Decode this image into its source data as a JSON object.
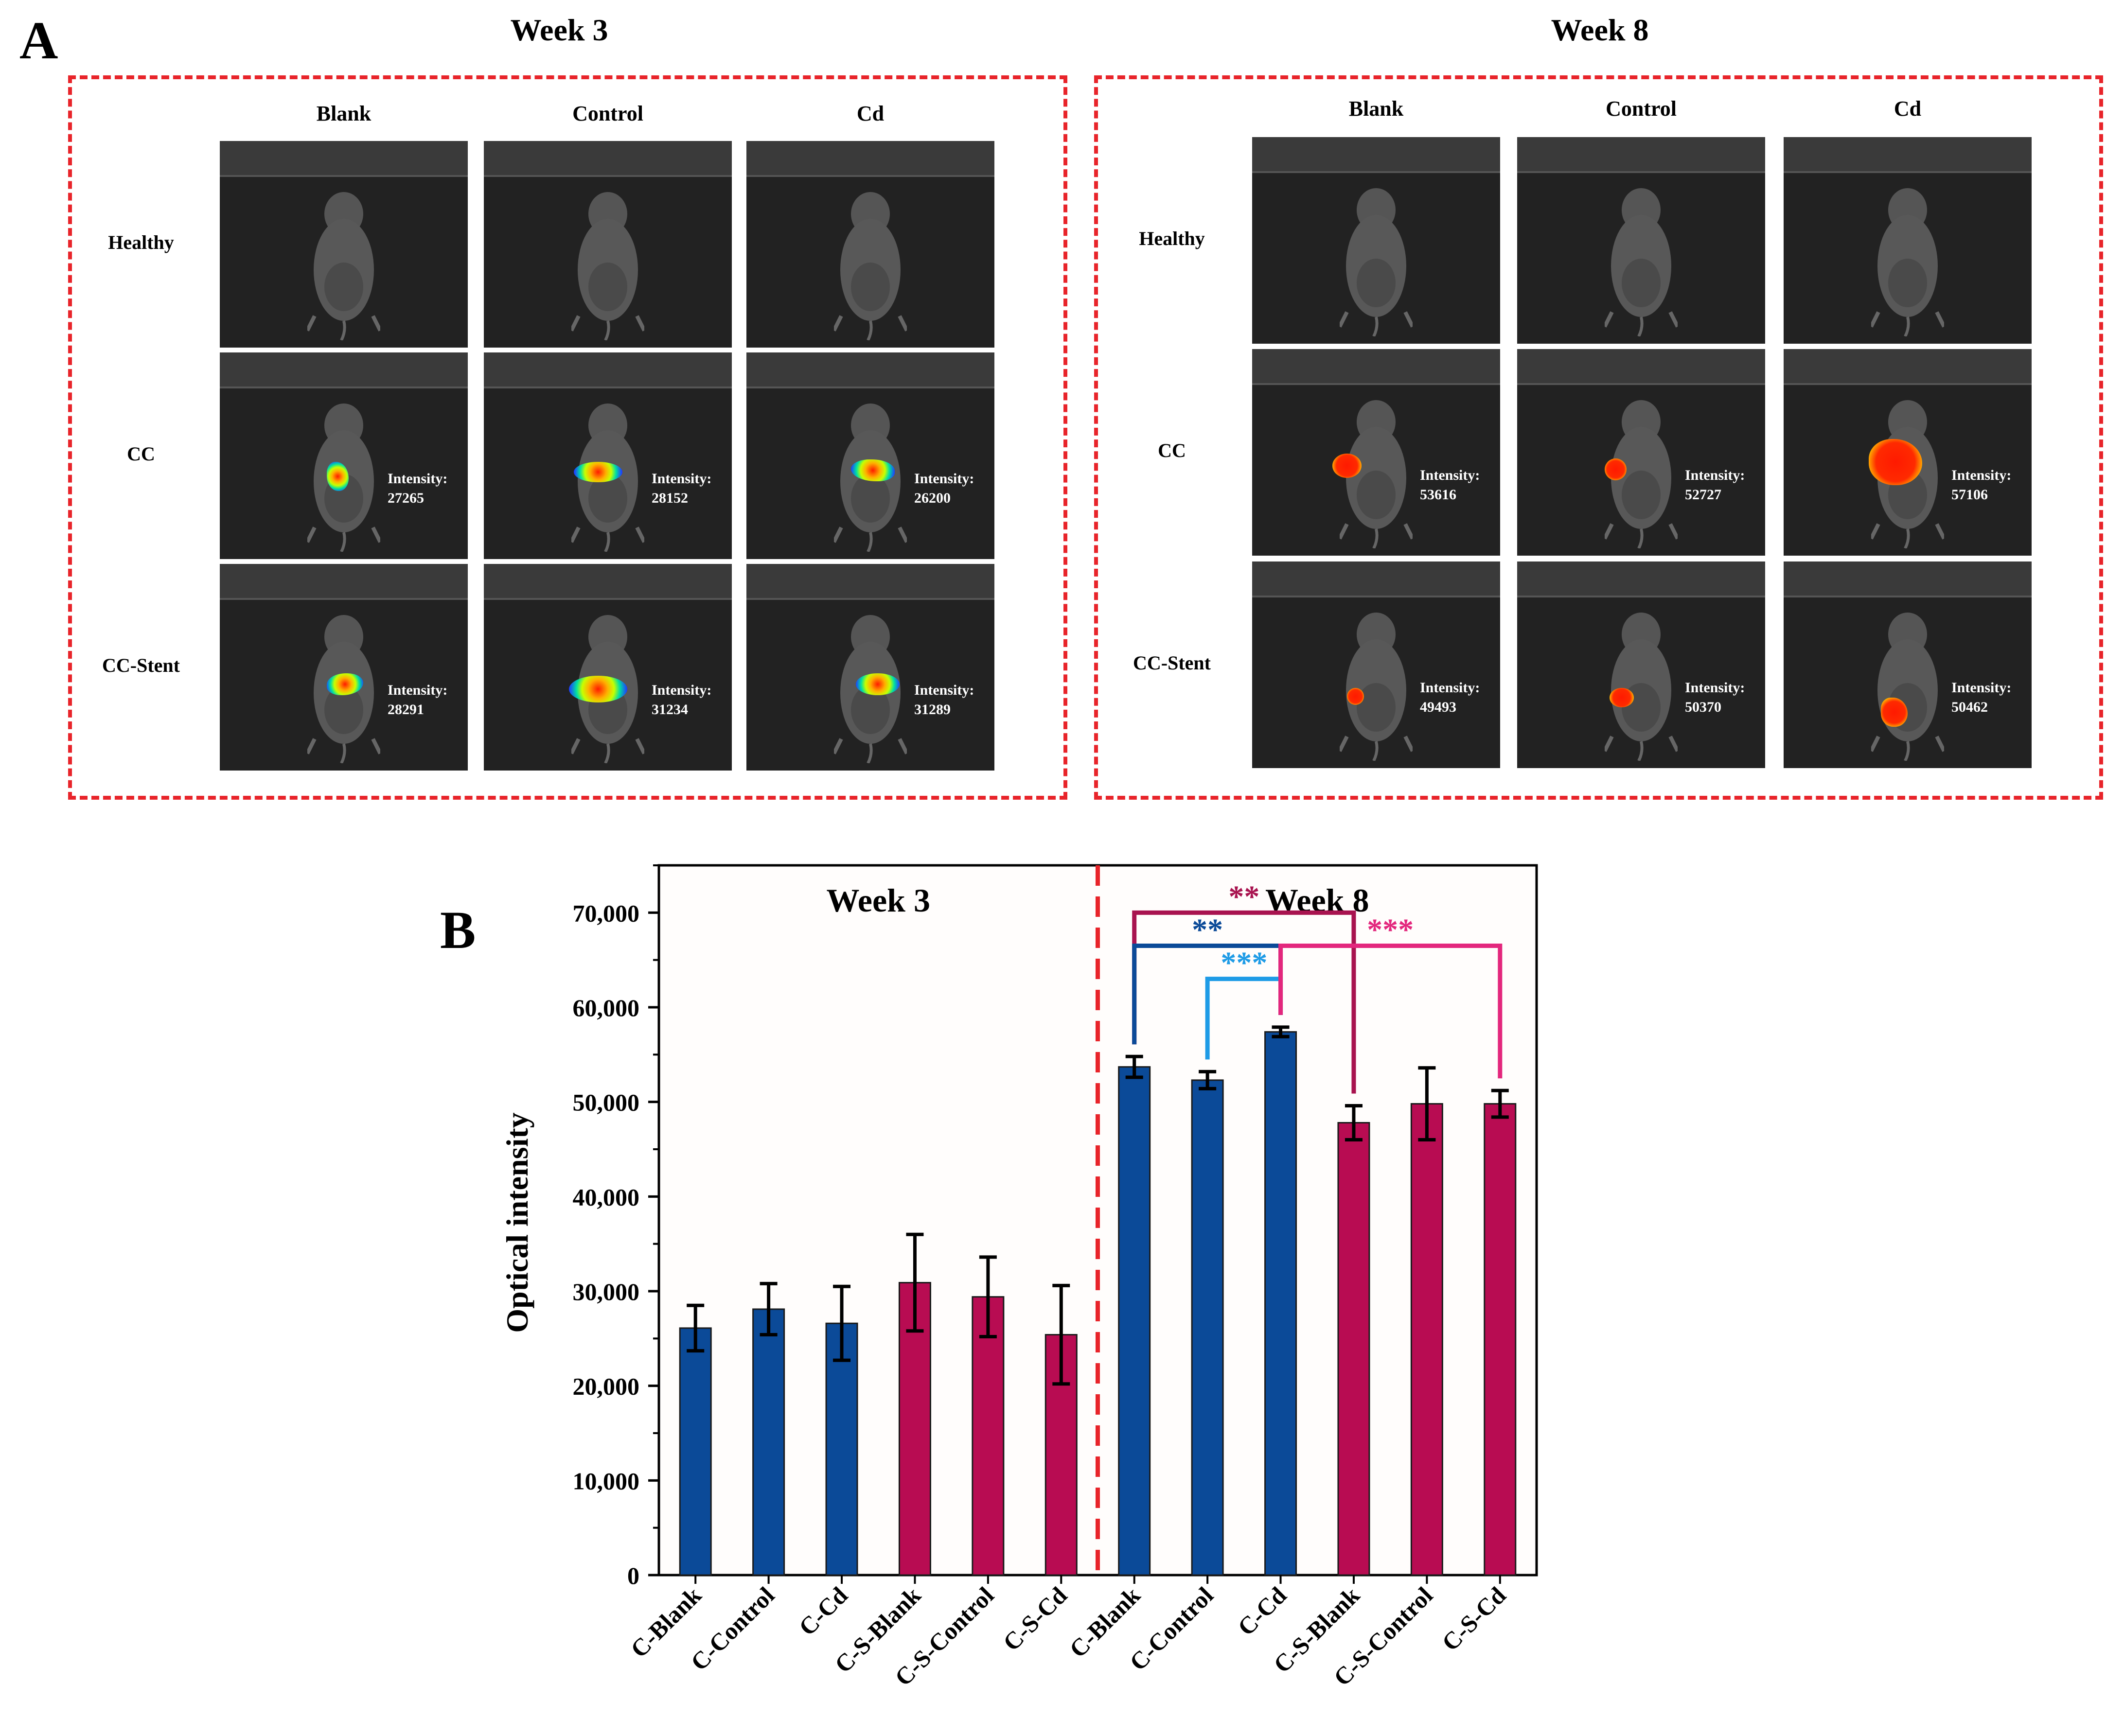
{
  "panel_a": {
    "letter": "A",
    "weeks": [
      {
        "title": "Week 3",
        "columns": [
          "Blank",
          "Control",
          "Cd"
        ],
        "rows": [
          {
            "label": "Healthy",
            "intensities": [
              null,
              null,
              null
            ]
          },
          {
            "label": "CC",
            "intensities": [
              "27265",
              "28152",
              "26200"
            ]
          },
          {
            "label": "CC-Stent",
            "intensities": [
              "28291",
              "31234",
              "31289"
            ]
          }
        ]
      },
      {
        "title": "Week 8",
        "columns": [
          "Blank",
          "Control",
          "Cd"
        ],
        "rows": [
          {
            "label": "Healthy",
            "intensities": [
              null,
              null,
              null
            ]
          },
          {
            "label": "CC",
            "intensities": [
              "53616",
              "52727",
              "57106"
            ]
          },
          {
            "label": "CC-Stent",
            "intensities": [
              "49493",
              "50370",
              "50462"
            ]
          }
        ]
      }
    ],
    "intensity_label": "Intensity:"
  },
  "chart_data": {
    "type": "bar",
    "panel_letter": "B",
    "ylabel": "Optical intensity",
    "xlabel": "",
    "ylim": [
      0,
      75000
    ],
    "yticks": [
      "0",
      "10,000",
      "20,000",
      "30,000",
      "40,000",
      "50,000",
      "60,000",
      "70,000"
    ],
    "ytick_values": [
      0,
      10000,
      20000,
      30000,
      40000,
      50000,
      60000,
      70000
    ],
    "section_labels": [
      "Week 3",
      "Week 8"
    ],
    "categories": [
      "C-Blank",
      "C-Control",
      "C-Cd",
      "C-S-Blank",
      "C-S-Control",
      "C-S-Cd",
      "C-Blank",
      "C-Control",
      "C-Cd",
      "C-S-Blank",
      "C-S-Control",
      "C-S-Cd"
    ],
    "values": [
      26100,
      28100,
      26600,
      30900,
      29400,
      25400,
      53700,
      52300,
      57400,
      47800,
      49800,
      49800
    ],
    "errors": [
      2400,
      2700,
      3900,
      5100,
      4200,
      5200,
      1100,
      900,
      500,
      1800,
      3800,
      1400
    ],
    "bar_groups": [
      "CC",
      "CC",
      "CC",
      "CC-Stent",
      "CC-Stent",
      "CC-Stent",
      "CC",
      "CC",
      "CC",
      "CC-Stent",
      "CC-Stent",
      "CC-Stent"
    ],
    "colors": {
      "CC": "#0b4a98",
      "CC-Stent": "#b80c52",
      "divider": "#e8242a"
    },
    "significance": [
      {
        "from": 6,
        "to": 9,
        "label": "**",
        "level": 70000,
        "color": "#a8134f"
      },
      {
        "from": 6,
        "to": 8,
        "label": "**",
        "level": 66500,
        "color": "#0b4a98"
      },
      {
        "from": 7,
        "to": 8,
        "label": "***",
        "level": 63000,
        "color": "#1e9be6"
      },
      {
        "from": 8,
        "to": 11,
        "label": "***",
        "level": 66500,
        "color": "#e3277d"
      }
    ],
    "grid": false
  }
}
